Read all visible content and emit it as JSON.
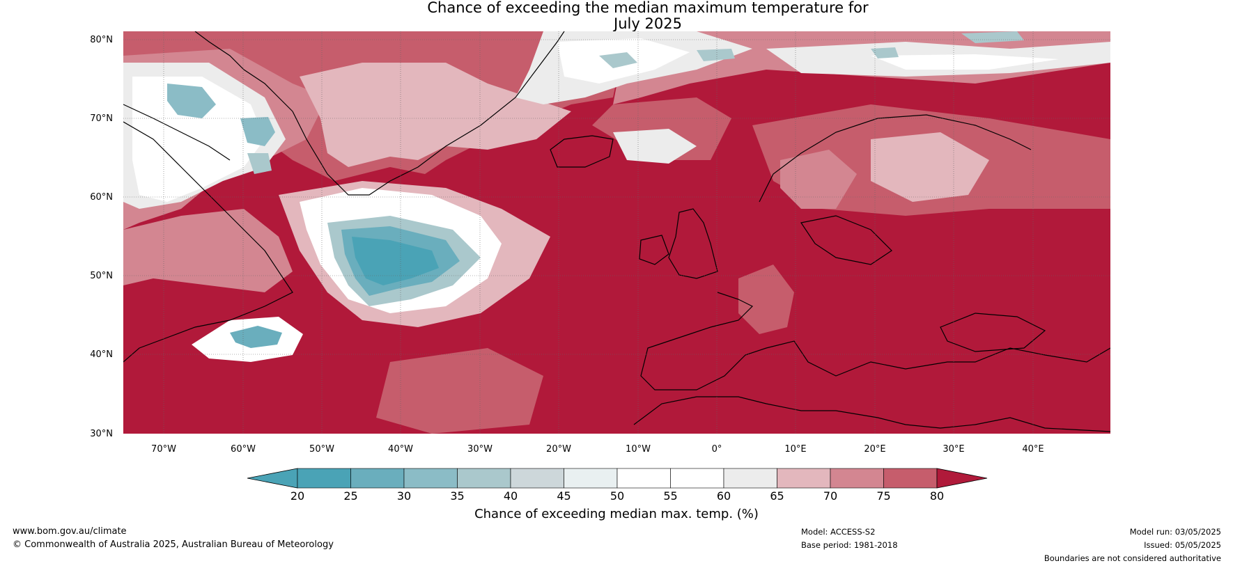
{
  "title_line1": "Chance of exceeding the median maximum temperature for",
  "title_line2": "July 2025",
  "lat_labels": [
    "80°N",
    "70°N",
    "60°N",
    "50°N",
    "40°N",
    "30°N"
  ],
  "lon_labels": [
    "70°W",
    "60°W",
    "50°W",
    "40°W",
    "30°W",
    "20°W",
    "10°W",
    "0°",
    "10°E",
    "20°E",
    "30°E",
    "40°E"
  ],
  "map_extent": {
    "lon_min": -75,
    "lon_max": 50,
    "lat_min": 30,
    "lat_max": 81
  },
  "colorbar": {
    "title": "Chance of exceeding median max. temp. (%)",
    "ticks": [
      "20",
      "25",
      "30",
      "35",
      "40",
      "45",
      "50",
      "55",
      "60",
      "65",
      "70",
      "75",
      "80"
    ],
    "colors": [
      "#4aa3b6",
      "#6aaebd",
      "#8bbcc6",
      "#aac8cc",
      "#cdd7da",
      "#e9f0f1",
      "#ffffff",
      "#ffffff",
      "#ececec",
      "#e3b7bd",
      "#d38691",
      "#c65d6c",
      "#b84153",
      "#b1193a"
    ],
    "above_color": "#b01a3a",
    "below_color": "#4aa3b6"
  },
  "footer": {
    "website": "www.bom.gov.au/climate",
    "copyright": "© Commonwealth of Australia 2025, Australian Bureau of Meteorology",
    "model": "Model: ACCESS-S2",
    "base_period": "Base period: 1981-2018",
    "model_run": "Model run: 03/05/2025",
    "issued": "Issued: 05/05/2025",
    "disclaimer": "Boundaries are not considered authoritative"
  }
}
